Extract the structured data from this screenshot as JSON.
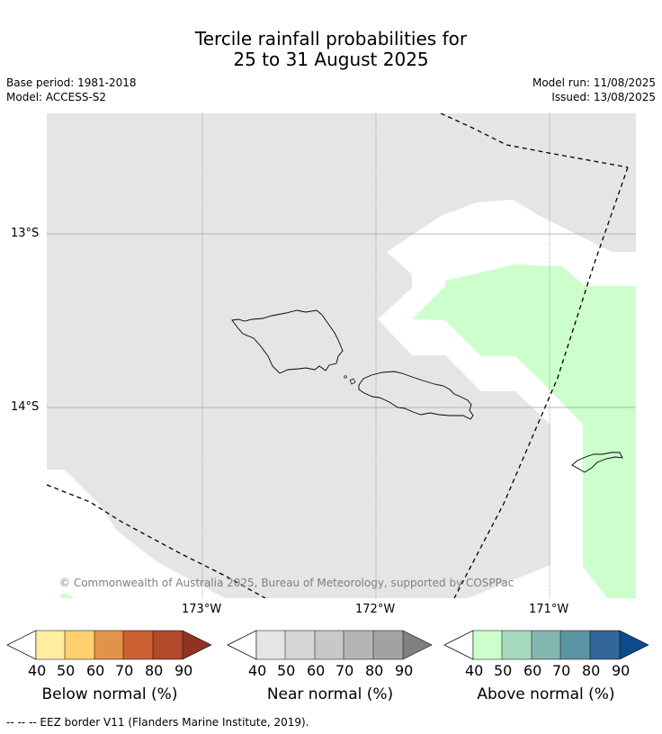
{
  "title": {
    "line1": "Tercile rainfall probabilities for",
    "line2": "25 to 31 August 2025"
  },
  "header": {
    "base_period": "Base period: 1981-2018",
    "model": "Model: ACCESS-S2",
    "model_run": "Model run: 11/08/2025",
    "issued": "Issued: 13/08/2025"
  },
  "map": {
    "lat_labels": [
      "13°S",
      "14°S"
    ],
    "lon_labels": [
      "173°W",
      "172°W",
      "171°W"
    ],
    "credit": "© Commonwealth of Australia 2025, Bureau of Meteorology, supported by COSPPac",
    "colors": {
      "near_normal_fill": "#e5e5e5",
      "above_normal_fill": "#ccffcc"
    }
  },
  "legends": [
    {
      "label": "Below normal (%)",
      "ticks": [
        "40",
        "50",
        "60",
        "70",
        "80",
        "90"
      ],
      "colors": [
        "#ffeda0",
        "#fed06e",
        "#e0944a",
        "#cc6133",
        "#b04a2a",
        "#8f3322"
      ]
    },
    {
      "label": "Near normal (%)",
      "ticks": [
        "40",
        "50",
        "60",
        "70",
        "80",
        "90"
      ],
      "colors": [
        "#e5e5e5",
        "#d6d6d6",
        "#c8c8c8",
        "#b5b5b5",
        "#a2a2a2",
        "#808080"
      ]
    },
    {
      "label": "Above normal (%)",
      "ticks": [
        "40",
        "50",
        "60",
        "70",
        "80",
        "90"
      ],
      "colors": [
        "#ccffcc",
        "#a6d8bd",
        "#82b5b0",
        "#5b95a3",
        "#336699",
        "#0d4a8a"
      ]
    }
  ],
  "footer": "--  --  -- EEZ border V11 (Flanders Marine Institute, 2019)."
}
